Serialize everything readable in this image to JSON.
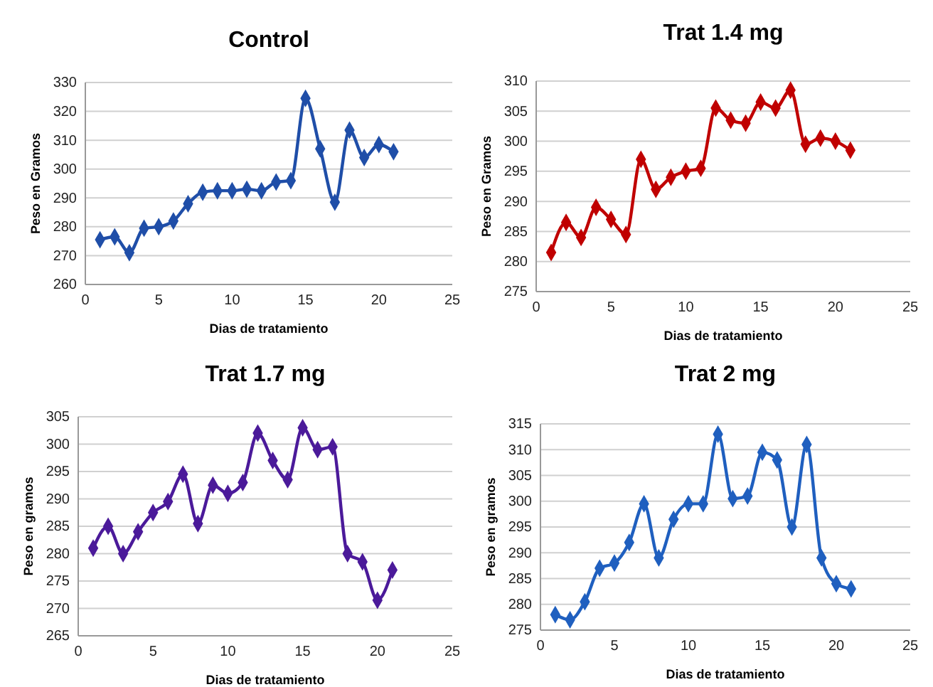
{
  "chart_data": [
    {
      "type": "line",
      "title": "Control",
      "xlabel": "Dias de tratamiento",
      "ylabel": "Peso en Gramos",
      "x": [
        1,
        2,
        3,
        4,
        5,
        6,
        7,
        8,
        9,
        10,
        11,
        12,
        13,
        14,
        15,
        16,
        17,
        18,
        19,
        20,
        21
      ],
      "series": [
        {
          "color": "#1f4ea8",
          "values": [
            275.5,
            276.5,
            271,
            279.5,
            280,
            282,
            288,
            292,
            292.5,
            292.5,
            293,
            292.5,
            295.5,
            296,
            324.5,
            307,
            288.5,
            313.5,
            304,
            308.5,
            306
          ]
        }
      ],
      "xlim": [
        0,
        25
      ],
      "xticks": [
        0,
        5,
        10,
        15,
        20,
        25
      ],
      "ylim": [
        260,
        330
      ],
      "yticks": [
        260,
        270,
        280,
        290,
        300,
        310,
        320,
        330
      ],
      "grid": "y",
      "marker": "diamond",
      "line_style": "solid"
    },
    {
      "type": "line",
      "title": "Trat 1.4 mg",
      "xlabel": "Dias de tratamiento",
      "ylabel": "Peso en Gramos",
      "x": [
        1,
        2,
        3,
        4,
        5,
        6,
        7,
        8,
        9,
        10,
        11,
        12,
        13,
        14,
        15,
        16,
        17,
        18,
        19,
        20,
        21
      ],
      "series": [
        {
          "color": "#c00000",
          "values": [
            281.5,
            286.5,
            284,
            289,
            287,
            284.5,
            297,
            292,
            294,
            295,
            295.5,
            305.5,
            303.5,
            303,
            306.5,
            305.5,
            308.5,
            299.5,
            300.5,
            300,
            298.5
          ]
        }
      ],
      "xlim": [
        0,
        25
      ],
      "xticks": [
        0,
        5,
        10,
        15,
        20,
        25
      ],
      "ylim": [
        275,
        310
      ],
      "yticks": [
        275,
        280,
        285,
        290,
        295,
        300,
        305,
        310
      ],
      "grid": "y",
      "marker": "diamond",
      "line_style": "solid"
    },
    {
      "type": "line",
      "title": "Trat 1.7 mg",
      "xlabel": "Dias de tratamiento",
      "ylabel": "Peso en gramos",
      "x": [
        1,
        2,
        3,
        4,
        5,
        6,
        7,
        8,
        9,
        10,
        11,
        12,
        13,
        14,
        15,
        16,
        17,
        18,
        19,
        20,
        21
      ],
      "series": [
        {
          "color": "#4b1a9a",
          "values": [
            281,
            285,
            280,
            284,
            287.5,
            289.5,
            294.5,
            285.5,
            292.5,
            291,
            293,
            302,
            297,
            293.5,
            303,
            299,
            299.5,
            280,
            278.5,
            271.5,
            277
          ]
        }
      ],
      "xlim": [
        0,
        25
      ],
      "xticks": [
        0,
        5,
        10,
        15,
        20,
        25
      ],
      "ylim": [
        265,
        305
      ],
      "yticks": [
        265,
        270,
        275,
        280,
        285,
        290,
        295,
        300,
        305
      ],
      "grid": "y",
      "marker": "diamond",
      "line_style": "solid"
    },
    {
      "type": "line",
      "title": "Trat 2 mg",
      "xlabel": "Dias de tratamiento",
      "ylabel": "Peso en gramos",
      "x": [
        1,
        2,
        3,
        4,
        5,
        6,
        7,
        8,
        9,
        10,
        11,
        12,
        13,
        14,
        15,
        16,
        17,
        18,
        19,
        20,
        21
      ],
      "series": [
        {
          "color": "#1f5fbf",
          "values": [
            278,
            277,
            280.5,
            287,
            288,
            292,
            299.5,
            289,
            296.5,
            299.5,
            299.5,
            313,
            300.5,
            301,
            309.5,
            308,
            295,
            311,
            289,
            284,
            283
          ]
        }
      ],
      "xlim": [
        0,
        25
      ],
      "xticks": [
        0,
        5,
        10,
        15,
        20,
        25
      ],
      "ylim": [
        275,
        315
      ],
      "yticks": [
        275,
        280,
        285,
        290,
        295,
        300,
        305,
        310,
        315
      ],
      "grid": "y",
      "marker": "diamond",
      "line_style": "solid"
    }
  ]
}
